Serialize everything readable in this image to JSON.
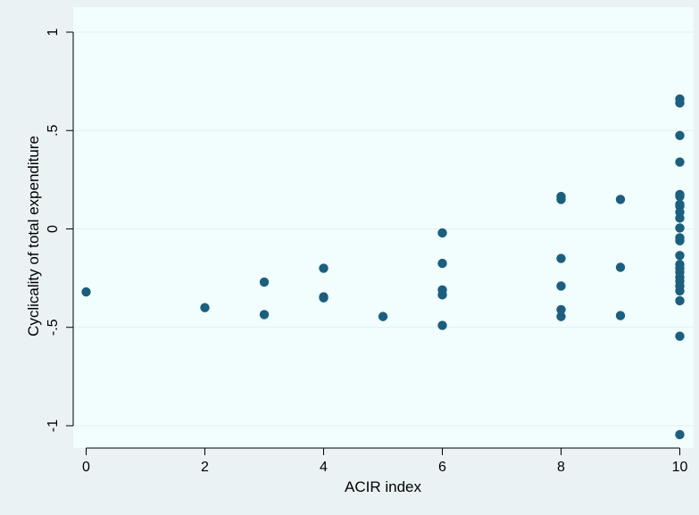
{
  "chart_data": {
    "type": "scatter",
    "xlabel": "ACIR index",
    "ylabel": "Cyclicality of total expenditure",
    "xlim": [
      0,
      10
    ],
    "ylim": [
      -1,
      1
    ],
    "x_ticks": [
      {
        "value": 0,
        "label": "0"
      },
      {
        "value": 2,
        "label": "2"
      },
      {
        "value": 4,
        "label": "4"
      },
      {
        "value": 6,
        "label": "6"
      },
      {
        "value": 8,
        "label": "8"
      },
      {
        "value": 10,
        "label": "10"
      }
    ],
    "y_ticks": [
      {
        "value": -1,
        "label": "-1"
      },
      {
        "value": -0.5,
        "label": "-.5"
      },
      {
        "value": 0,
        "label": "0"
      },
      {
        "value": 0.5,
        "label": ".5"
      },
      {
        "value": 1,
        "label": "1"
      }
    ],
    "grid": true,
    "colors": {
      "outer_background": "#eaf2f3",
      "plot_background": "#f2fdfe",
      "gridline": "#e3eef0",
      "marker": "#1a5f7f",
      "axis": "#000000"
    },
    "points": [
      {
        "x": 0,
        "y": -0.32
      },
      {
        "x": 2,
        "y": -0.4
      },
      {
        "x": 3,
        "y": -0.27
      },
      {
        "x": 3,
        "y": -0.435
      },
      {
        "x": 4,
        "y": -0.2
      },
      {
        "x": 4,
        "y": -0.345
      },
      {
        "x": 4,
        "y": -0.35
      },
      {
        "x": 5,
        "y": -0.445
      },
      {
        "x": 6,
        "y": -0.02
      },
      {
        "x": 6,
        "y": -0.175
      },
      {
        "x": 6,
        "y": -0.31
      },
      {
        "x": 6,
        "y": -0.335
      },
      {
        "x": 6,
        "y": -0.49
      },
      {
        "x": 8,
        "y": 0.165
      },
      {
        "x": 8,
        "y": 0.15
      },
      {
        "x": 8,
        "y": -0.15
      },
      {
        "x": 8,
        "y": -0.29
      },
      {
        "x": 8,
        "y": -0.41
      },
      {
        "x": 8,
        "y": -0.445
      },
      {
        "x": 9,
        "y": 0.15
      },
      {
        "x": 9,
        "y": -0.195
      },
      {
        "x": 9,
        "y": -0.44
      },
      {
        "x": 10,
        "y": 0.66
      },
      {
        "x": 10,
        "y": 0.64
      },
      {
        "x": 10,
        "y": 0.475
      },
      {
        "x": 10,
        "y": 0.34
      },
      {
        "x": 10,
        "y": 0.175
      },
      {
        "x": 10,
        "y": 0.165
      },
      {
        "x": 10,
        "y": 0.125
      },
      {
        "x": 10,
        "y": 0.115
      },
      {
        "x": 10,
        "y": 0.085
      },
      {
        "x": 10,
        "y": 0.055
      },
      {
        "x": 10,
        "y": 0.005
      },
      {
        "x": 10,
        "y": -0.045
      },
      {
        "x": 10,
        "y": -0.06
      },
      {
        "x": 10,
        "y": -0.135
      },
      {
        "x": 10,
        "y": -0.18
      },
      {
        "x": 10,
        "y": -0.2
      },
      {
        "x": 10,
        "y": -0.22
      },
      {
        "x": 10,
        "y": -0.245
      },
      {
        "x": 10,
        "y": -0.265
      },
      {
        "x": 10,
        "y": -0.29
      },
      {
        "x": 10,
        "y": -0.315
      },
      {
        "x": 10,
        "y": -0.365
      },
      {
        "x": 10,
        "y": -0.545
      },
      {
        "x": 10,
        "y": -1.045
      }
    ]
  }
}
